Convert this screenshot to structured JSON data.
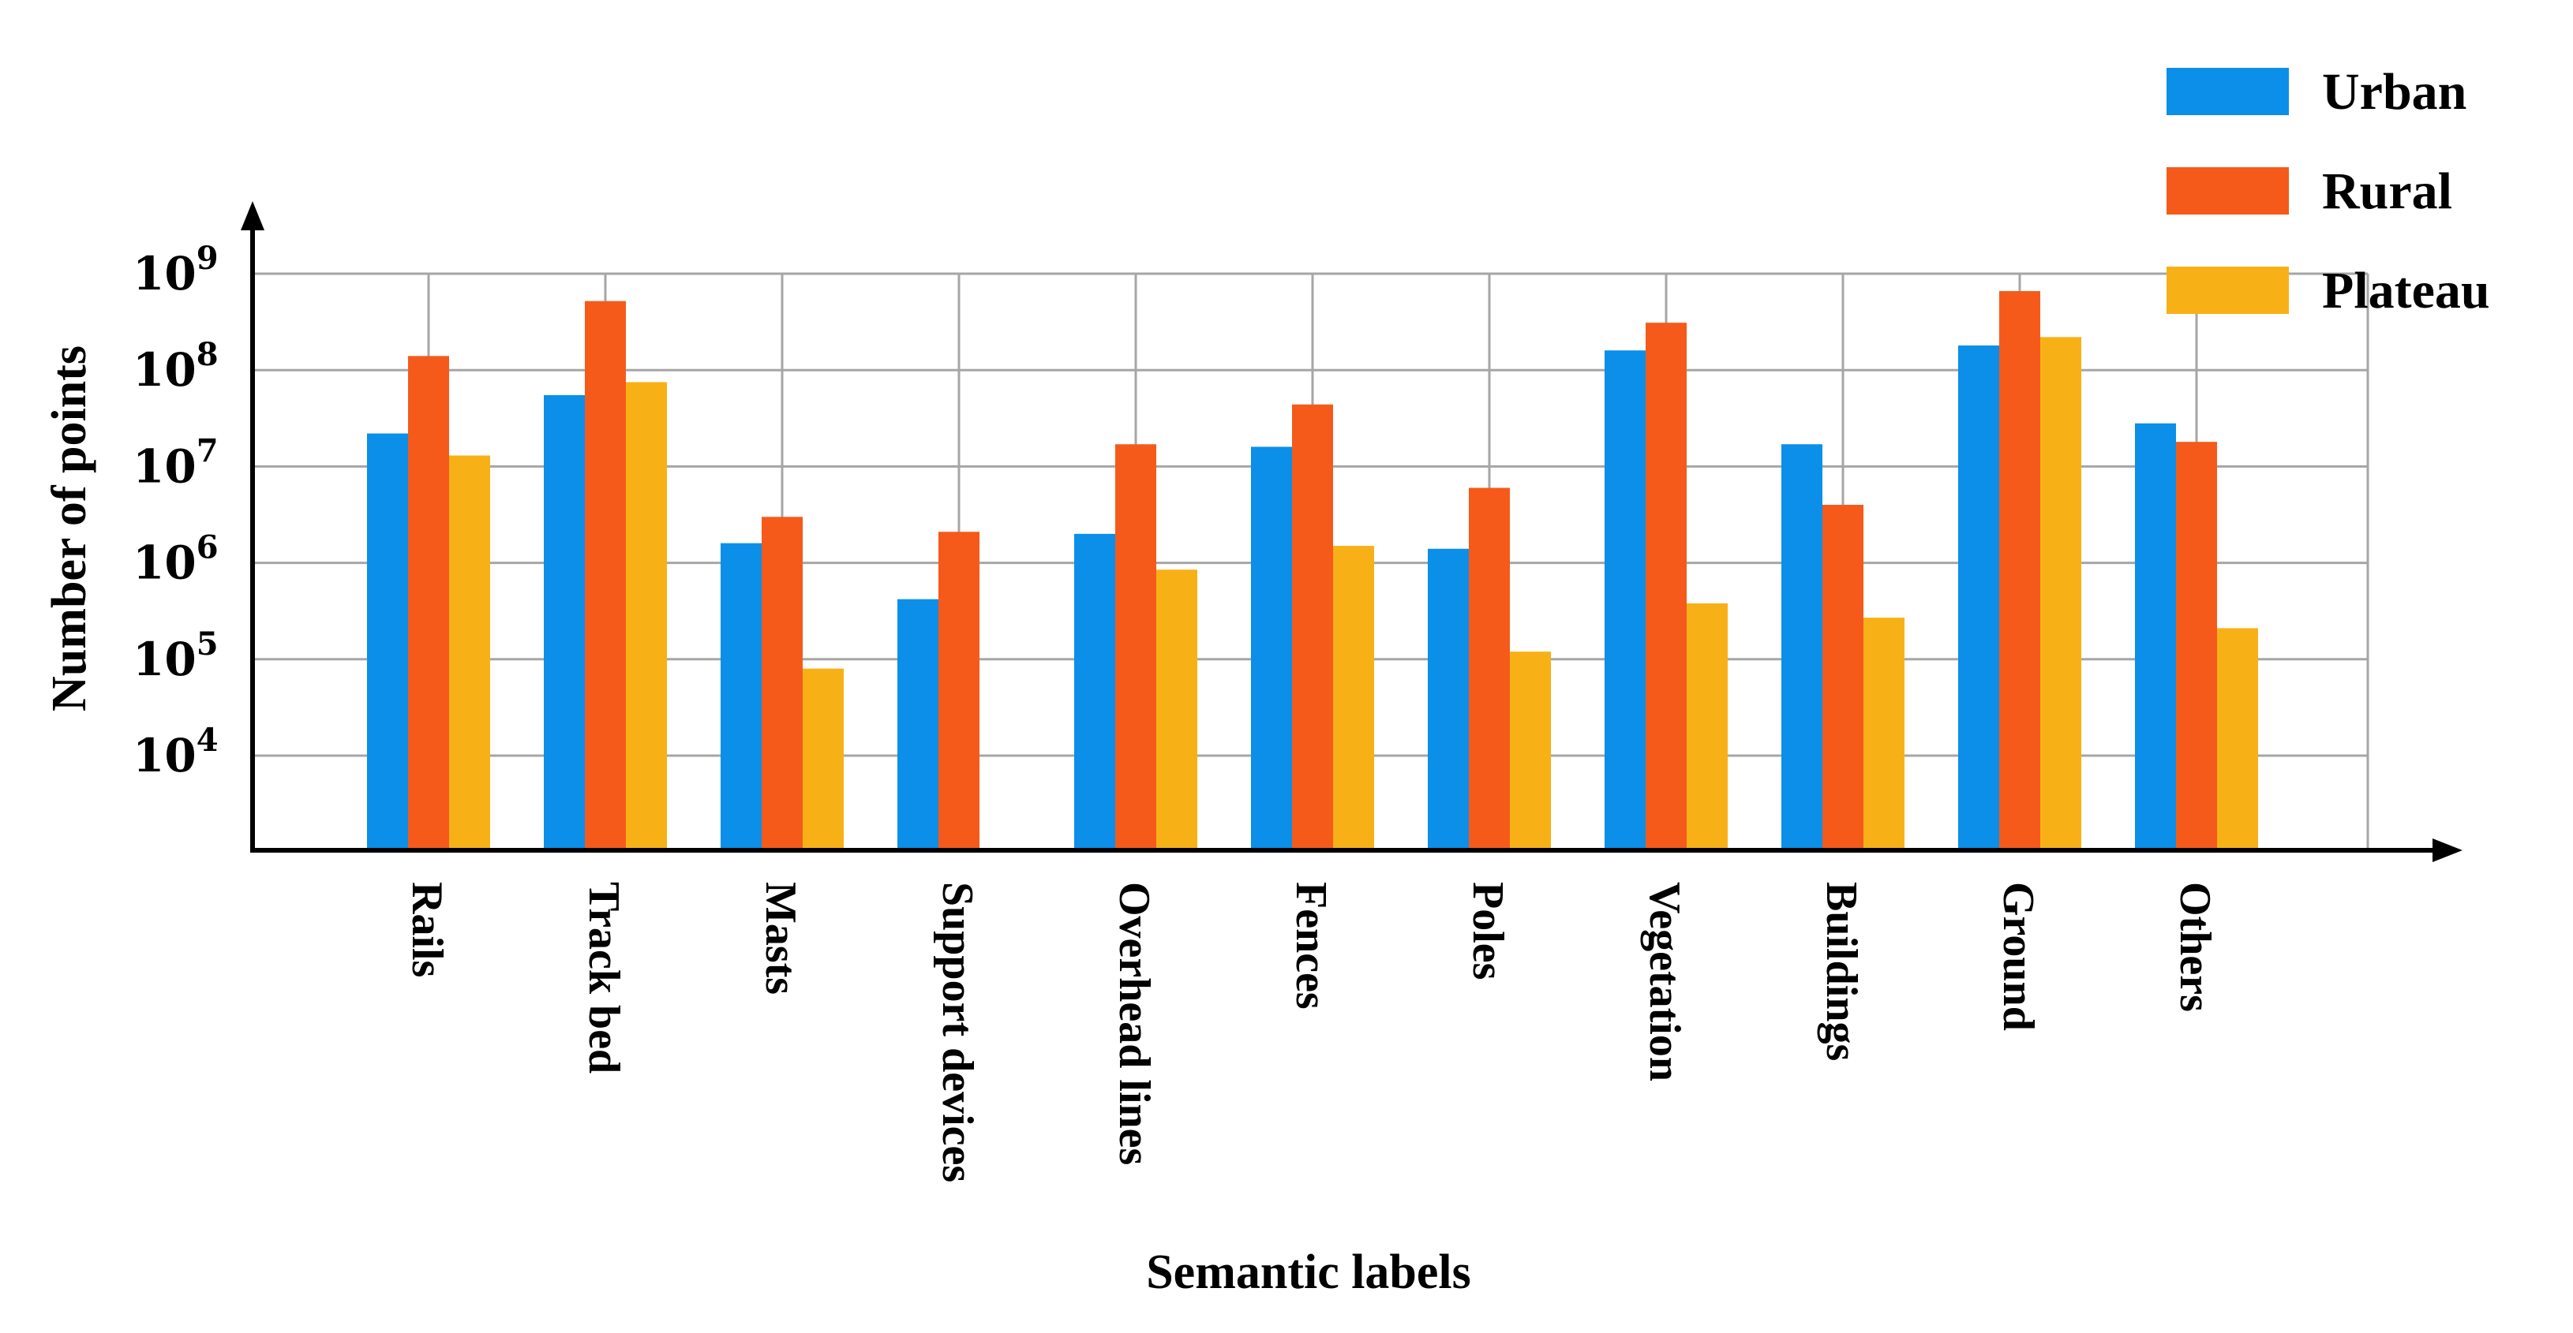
{
  "chart_data": {
    "type": "bar",
    "xlabel": "Semantic labels",
    "ylabel": "Number of points",
    "yscale": "log",
    "ylim": [
      1000,
      1000000000
    ],
    "yticks": [
      {
        "value": 10000,
        "base": "10",
        "exp": "4"
      },
      {
        "value": 100000,
        "base": "10",
        "exp": "5"
      },
      {
        "value": 1000000,
        "base": "10",
        "exp": "6"
      },
      {
        "value": 10000000,
        "base": "10",
        "exp": "7"
      },
      {
        "value": 100000000,
        "base": "10",
        "exp": "8"
      },
      {
        "value": 1000000000,
        "base": "10",
        "exp": "9"
      }
    ],
    "grid": true,
    "legend_position": "top-right",
    "categories": [
      "Rails",
      "Track bed",
      "Masts",
      "Support devices",
      "Overhead lines",
      "Fences",
      "Poles",
      "Vegetation",
      "Buildings",
      "Ground",
      "Others"
    ],
    "series": [
      {
        "name": "Urban",
        "color": "#0b8fe8",
        "values": [
          22000000,
          55000000,
          1600000,
          420000,
          2000000,
          16000000,
          1400000,
          160000000,
          17000000,
          180000000,
          28000000
        ]
      },
      {
        "name": "Rural",
        "color": "#f55a1b",
        "values": [
          140000000,
          520000000,
          3000000,
          2100000,
          17000000,
          44000000,
          6000000,
          310000000,
          4000000,
          660000000,
          18000000
        ]
      },
      {
        "name": "Plateau",
        "color": "#f7b117",
        "values": [
          13000000,
          75000000,
          80000,
          null,
          850000,
          1500000,
          120000,
          380000,
          270000,
          220000000,
          210000
        ]
      }
    ]
  }
}
